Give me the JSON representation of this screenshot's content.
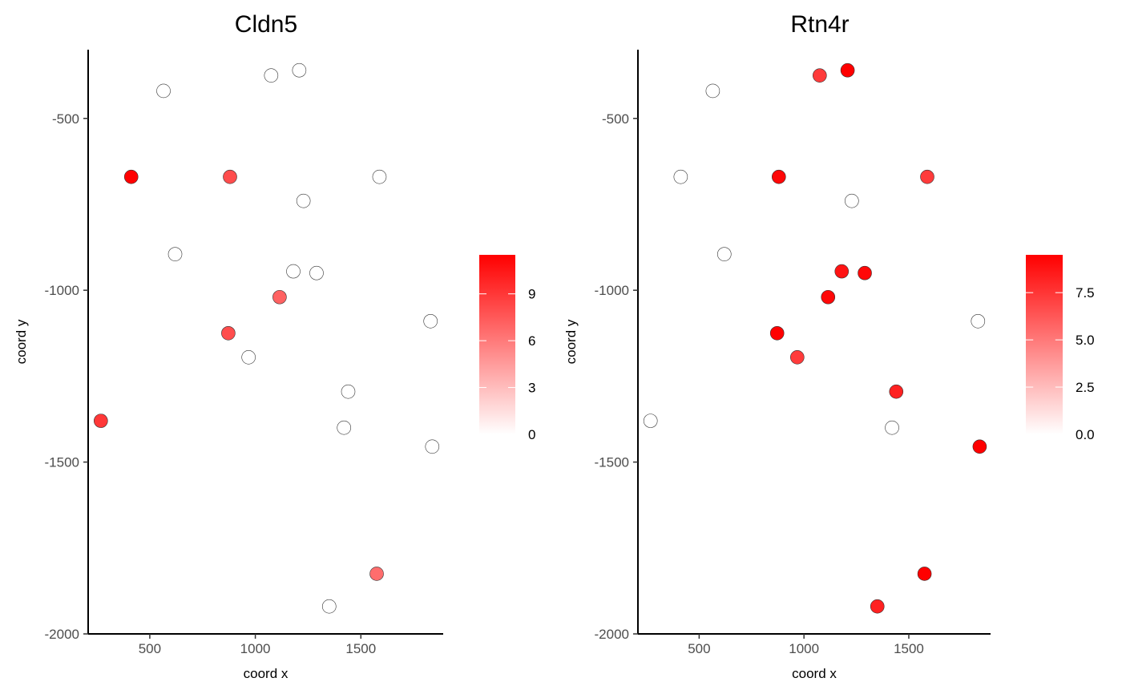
{
  "chart_data": [
    {
      "type": "scatter",
      "title": "Cldn5",
      "xlabel": "coord x",
      "ylabel": "coord y",
      "xlim": [
        208,
        1890
      ],
      "ylim": [
        -2000,
        -300
      ],
      "x_ticks": [
        "500",
        "1000",
        "1500"
      ],
      "y_ticks": [
        "-500",
        "-1000",
        "-1500",
        "-2000"
      ],
      "colorbar": {
        "min": 0,
        "max": 11.5,
        "ticks": [
          "0",
          "3",
          "6",
          "9"
        ],
        "low_color": "#ffffff",
        "high_color": "#ff0000"
      },
      "grid": false,
      "points": [
        {
          "x": 1208,
          "y": -360,
          "value": 0
        },
        {
          "x": 1075,
          "y": -375,
          "value": 0
        },
        {
          "x": 565,
          "y": -420,
          "value": 0
        },
        {
          "x": 412,
          "y": -670,
          "value": 11.5
        },
        {
          "x": 880,
          "y": -670,
          "value": 7
        },
        {
          "x": 1588,
          "y": -670,
          "value": 0
        },
        {
          "x": 1228,
          "y": -740,
          "value": 0
        },
        {
          "x": 620,
          "y": -895,
          "value": 0
        },
        {
          "x": 1180,
          "y": -945,
          "value": 0
        },
        {
          "x": 1290,
          "y": -950,
          "value": 0
        },
        {
          "x": 1115,
          "y": -1020,
          "value": 6
        },
        {
          "x": 1830,
          "y": -1090,
          "value": 0
        },
        {
          "x": 872,
          "y": -1125,
          "value": 7
        },
        {
          "x": 968,
          "y": -1195,
          "value": 0
        },
        {
          "x": 1440,
          "y": -1295,
          "value": 0
        },
        {
          "x": 1420,
          "y": -1400,
          "value": 0
        },
        {
          "x": 268,
          "y": -1380,
          "value": 8
        },
        {
          "x": 1838,
          "y": -1455,
          "value": 0
        },
        {
          "x": 1575,
          "y": -1825,
          "value": 5.5
        },
        {
          "x": 1350,
          "y": -1920,
          "value": 0
        }
      ]
    },
    {
      "type": "scatter",
      "title": "Rtn4r",
      "xlabel": "coord x",
      "ylabel": "coord y",
      "xlim": [
        208,
        1890
      ],
      "ylim": [
        -2000,
        -300
      ],
      "x_ticks": [
        "500",
        "1000",
        "1500"
      ],
      "y_ticks": [
        "-500",
        "-1000",
        "-1500",
        "-2000"
      ],
      "colorbar": {
        "min": 0,
        "max": 9.5,
        "ticks": [
          "0.0",
          "2.5",
          "5.0",
          "7.5"
        ],
        "low_color": "#ffffff",
        "high_color": "#ff0000"
      },
      "grid": false,
      "points": [
        {
          "x": 1208,
          "y": -360,
          "value": 9.5
        },
        {
          "x": 1075,
          "y": -375,
          "value": 6.5
        },
        {
          "x": 565,
          "y": -420,
          "value": 0
        },
        {
          "x": 412,
          "y": -670,
          "value": 0
        },
        {
          "x": 880,
          "y": -670,
          "value": 8.5
        },
        {
          "x": 1588,
          "y": -670,
          "value": 6.5
        },
        {
          "x": 1228,
          "y": -740,
          "value": 0
        },
        {
          "x": 620,
          "y": -895,
          "value": 0
        },
        {
          "x": 1180,
          "y": -945,
          "value": 8
        },
        {
          "x": 1290,
          "y": -950,
          "value": 8.5
        },
        {
          "x": 1115,
          "y": -1020,
          "value": 8.5
        },
        {
          "x": 1830,
          "y": -1090,
          "value": 0
        },
        {
          "x": 872,
          "y": -1125,
          "value": 8.8
        },
        {
          "x": 968,
          "y": -1195,
          "value": 6.5
        },
        {
          "x": 1440,
          "y": -1295,
          "value": 7.5
        },
        {
          "x": 1420,
          "y": -1400,
          "value": 0
        },
        {
          "x": 268,
          "y": -1380,
          "value": 0
        },
        {
          "x": 1838,
          "y": -1455,
          "value": 9.5
        },
        {
          "x": 1575,
          "y": -1825,
          "value": 8.8
        },
        {
          "x": 1350,
          "y": -1920,
          "value": 7.5
        }
      ]
    }
  ]
}
